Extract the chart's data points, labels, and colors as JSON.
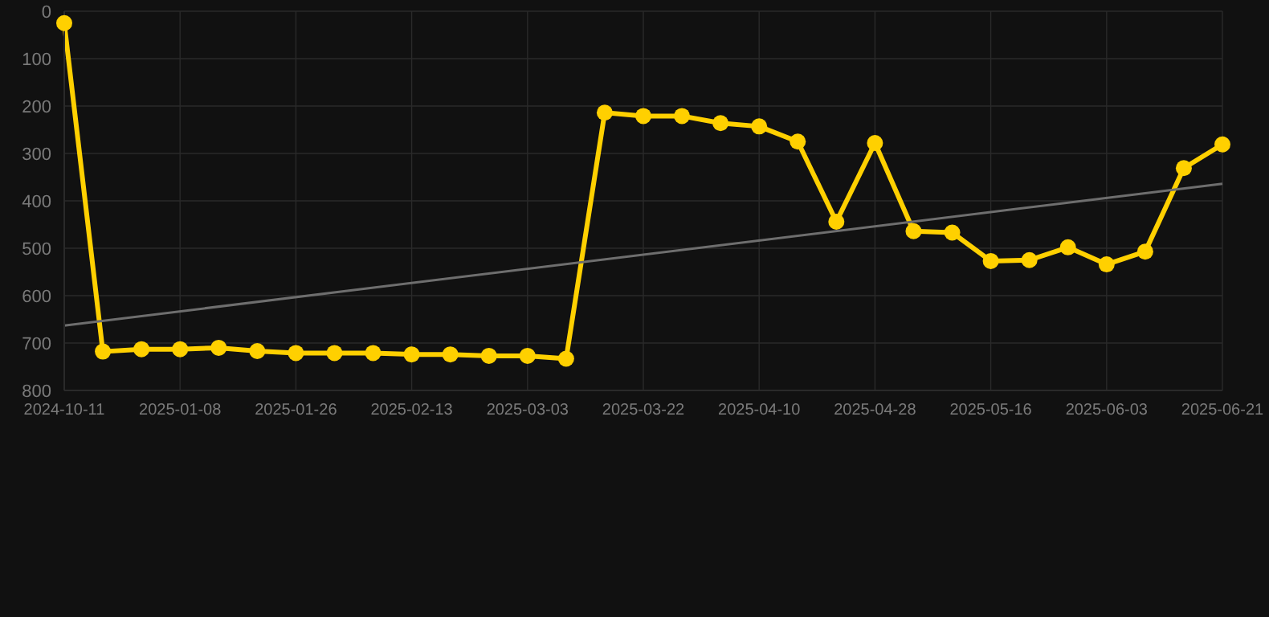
{
  "chart_data": {
    "type": "line",
    "categories": [
      "2024-10-11",
      null,
      null,
      "2025-01-08",
      null,
      null,
      "2025-01-26",
      null,
      null,
      "2025-02-13",
      null,
      null,
      "2025-03-03",
      null,
      null,
      "2025-03-22",
      null,
      null,
      "2025-04-10",
      null,
      null,
      "2025-04-28",
      null,
      null,
      "2025-05-16",
      null,
      null,
      "2025-06-03",
      null,
      null,
      "2025-06-21"
    ],
    "series": [
      {
        "color": "#ffd000",
        "marker": "circle",
        "values": [
          25,
          718,
          713,
          713,
          710,
          717,
          721,
          721,
          721,
          724,
          724,
          727,
          727,
          733,
          214,
          221,
          221,
          236,
          243,
          275,
          444,
          278,
          464,
          467,
          527,
          525,
          498,
          534,
          507,
          331,
          281
        ]
      },
      {
        "type": "line",
        "color": "#6e6e6e",
        "marker": "none",
        "values": [
          663,
          null,
          null,
          null,
          null,
          null,
          null,
          null,
          null,
          null,
          null,
          null,
          null,
          null,
          null,
          null,
          null,
          null,
          null,
          null,
          null,
          null,
          null,
          null,
          null,
          null,
          null,
          null,
          null,
          null,
          364
        ]
      }
    ],
    "ylim": [
      800,
      0
    ],
    "yticks": [
      0,
      100,
      200,
      300,
      400,
      500,
      600,
      700,
      800
    ],
    "grid": true
  }
}
